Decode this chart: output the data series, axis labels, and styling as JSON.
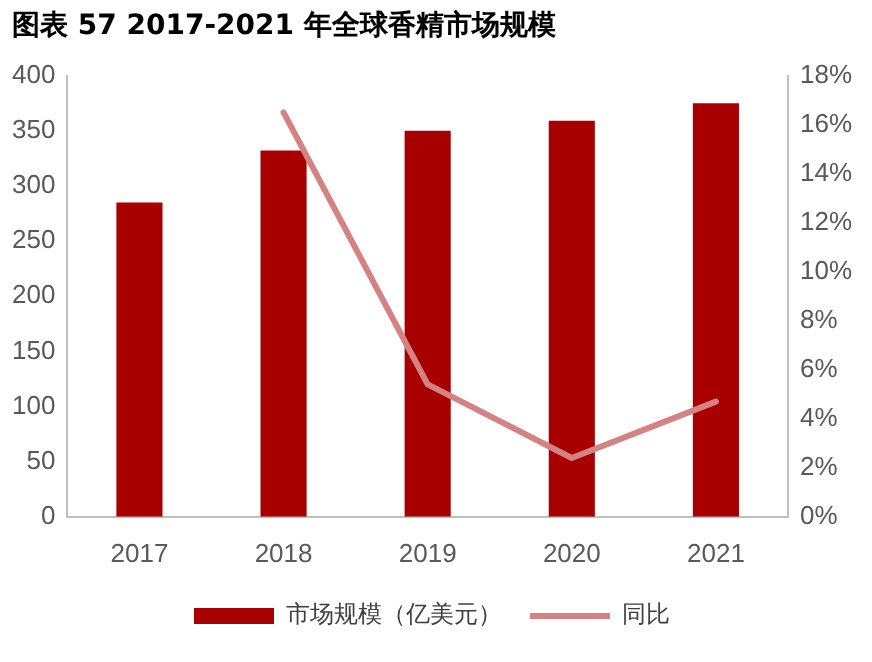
{
  "chart_data": {
    "type": "bar",
    "title": "图表 57 2017-2021 年全球香精市场规模",
    "categories": [
      "2017",
      "2018",
      "2019",
      "2020",
      "2021"
    ],
    "series": [
      {
        "name": "市场规模（亿美元）",
        "color": "#a80000",
        "values": [
          285,
          332,
          350,
          359,
          375
        ]
      },
      {
        "name": "同比",
        "type": "line",
        "axis": "y2",
        "color": "#d48282",
        "values": [
          null,
          16.5,
          5.4,
          2.4,
          4.7
        ]
      }
    ],
    "ylim": [
      0,
      400
    ],
    "yticks": [
      0,
      50,
      100,
      150,
      200,
      250,
      300,
      350,
      400
    ],
    "y2lim": [
      0,
      18
    ],
    "y2ticks": [
      {
        "value": 0,
        "label": "0%"
      },
      {
        "value": 2,
        "label": "2%"
      },
      {
        "value": 4,
        "label": "4%"
      },
      {
        "value": 6,
        "label": "6%"
      },
      {
        "value": 8,
        "label": "8%"
      },
      {
        "value": 10,
        "label": "10%"
      },
      {
        "value": 12,
        "label": "12%"
      },
      {
        "value": 14,
        "label": "14%"
      },
      {
        "value": 16,
        "label": "16%"
      },
      {
        "value": 18,
        "label": "18%"
      }
    ],
    "grid": false,
    "legend": "bottom",
    "marker": "none",
    "line_style": "solid"
  }
}
